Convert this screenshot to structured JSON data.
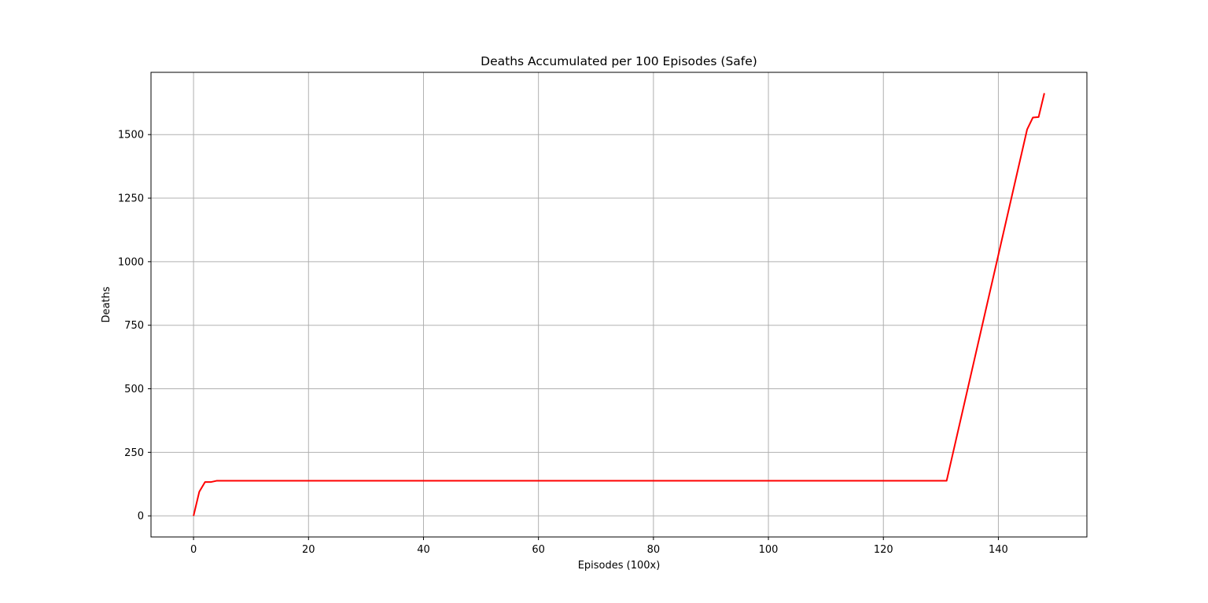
{
  "chart_data": {
    "type": "line",
    "title": "Deaths Accumulated per 100 Episodes (Safe)",
    "xlabel": "Episodes (100x)",
    "ylabel": "Deaths",
    "xlim": [
      -7.4,
      155.4
    ],
    "ylim": [
      -83,
      1745
    ],
    "xticks": [
      0,
      20,
      40,
      60,
      80,
      100,
      120,
      140
    ],
    "yticks": [
      0,
      250,
      500,
      750,
      1000,
      1250,
      1500
    ],
    "grid": true,
    "series": [
      {
        "color": "#ff0000",
        "x": [
          0,
          1,
          2,
          3,
          4,
          5,
          131,
          145,
          146,
          147,
          148
        ],
        "y": [
          0,
          95,
          133,
          133,
          138,
          138,
          138,
          1520,
          1567,
          1569,
          1663
        ]
      }
    ]
  }
}
